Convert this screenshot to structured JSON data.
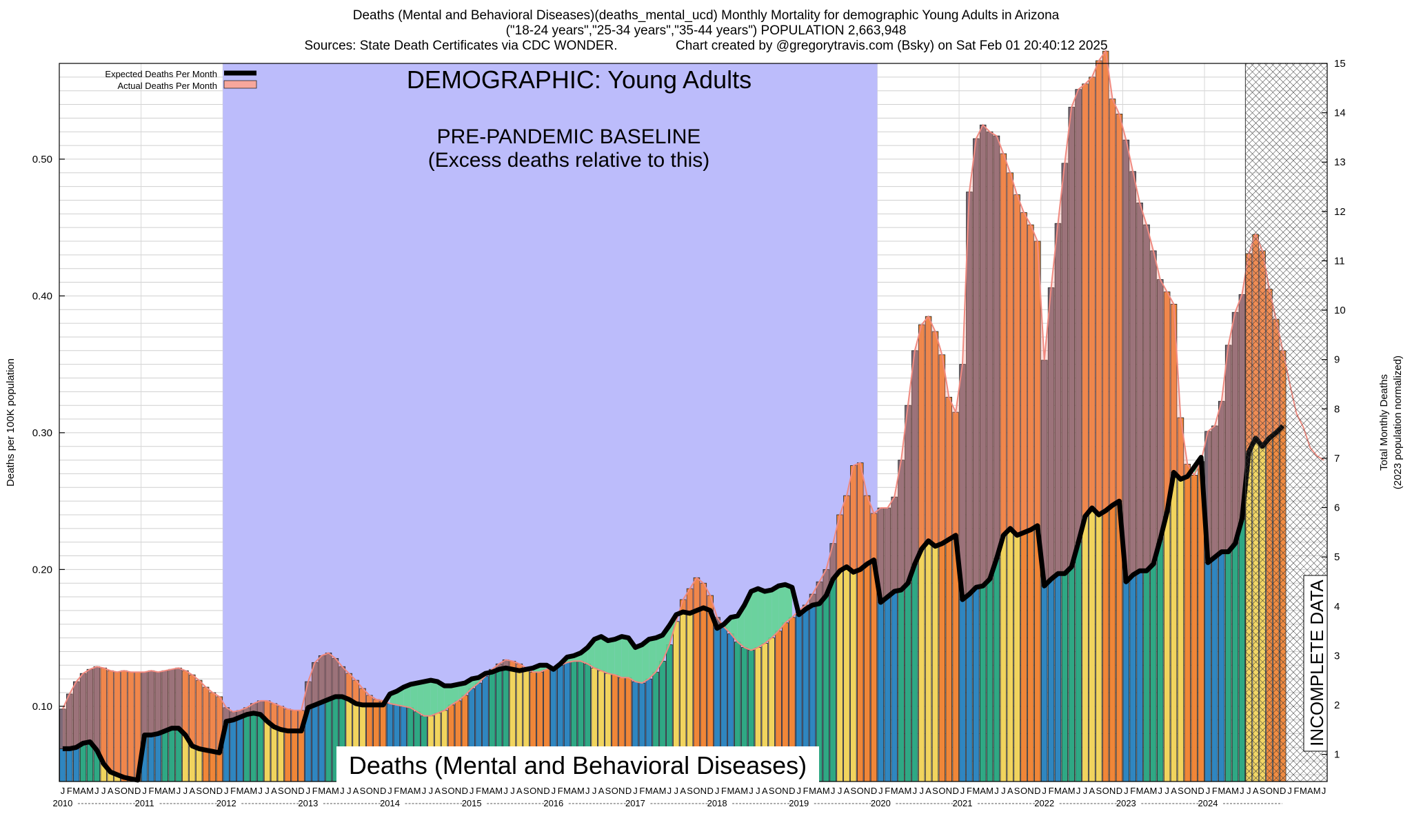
{
  "title_lines": [
    "Deaths (Mental and Behavioral Diseases)(deaths_mental_ucd) Monthly Mortality for demographic Young Adults in Arizona",
    "(\"18-24 years\",\"25-34 years\",\"35-44 years\") POPULATION 2,663,948",
    "Sources: State Death Certificates via CDC WONDER.                Chart created by @gregorytravis.com (Bsky) on Sat Feb 01 20:40:12 2025"
  ],
  "chart_data": {
    "type": "bar",
    "start": "2010-01",
    "month_letters": [
      "J",
      "F",
      "M",
      "A",
      "M",
      "J",
      "J",
      "A",
      "S",
      "O",
      "N",
      "D"
    ],
    "years": [
      "2010",
      "2011",
      "2012",
      "2013",
      "2014",
      "2015",
      "2016",
      "2017",
      "2018",
      "2019",
      "2020",
      "2021",
      "2022",
      "2023",
      "2024"
    ],
    "ylabel": "Deaths per 100K population",
    "y2label_lines": [
      "Total Monthly Deaths",
      "(2023 population normalized)"
    ],
    "ylim": [
      0.045,
      0.57
    ],
    "yticks": [
      "0.10",
      "0.20",
      "0.30",
      "0.40",
      "0.50"
    ],
    "y2lim": [
      0.45,
      15
    ],
    "y2ticks": [
      "1",
      "2",
      "3",
      "4",
      "5",
      "6",
      "7",
      "8",
      "9",
      "10",
      "11",
      "12",
      "13",
      "14",
      "15"
    ],
    "legend": [
      "Expected Deaths Per Month",
      "Actual Deaths Per Month"
    ],
    "annotations": {
      "demographic": "DEMOGRAPHIC: Young Adults",
      "baseline_line1": "PRE-PANDEMIC BASELINE",
      "baseline_line2": "(Excess deaths relative to this)",
      "cause": "Deaths (Mental and Behavioral Diseases)",
      "incomplete": "INCOMPLETE DATA"
    },
    "baseline_period": [
      "2012-01",
      "2019-12"
    ],
    "incomplete_from": "2024-07",
    "series": [
      {
        "name": "Actual Deaths Per Month",
        "values": [
          0.098,
          0.109,
          0.118,
          0.124,
          0.127,
          0.129,
          0.128,
          0.126,
          0.125,
          0.126,
          0.125,
          0.125,
          0.125,
          0.126,
          0.125,
          0.126,
          0.127,
          0.128,
          0.126,
          0.123,
          0.119,
          0.114,
          0.11,
          0.107,
          0.099,
          0.096,
          0.097,
          0.099,
          0.102,
          0.104,
          0.104,
          0.102,
          0.1,
          0.098,
          0.097,
          0.097,
          0.118,
          0.132,
          0.137,
          0.139,
          0.135,
          0.129,
          0.124,
          0.119,
          0.113,
          0.108,
          0.105,
          0.104,
          0.102,
          0.101,
          0.1,
          0.099,
          0.096,
          0.093,
          0.093,
          0.095,
          0.097,
          0.101,
          0.104,
          0.108,
          0.113,
          0.117,
          0.122,
          0.127,
          0.131,
          0.134,
          0.133,
          0.131,
          0.128,
          0.125,
          0.125,
          0.127,
          0.128,
          0.13,
          0.132,
          0.133,
          0.133,
          0.131,
          0.128,
          0.126,
          0.124,
          0.123,
          0.121,
          0.121,
          0.118,
          0.117,
          0.12,
          0.125,
          0.133,
          0.145,
          0.162,
          0.178,
          0.186,
          0.194,
          0.19,
          0.181,
          0.165,
          0.158,
          0.153,
          0.147,
          0.143,
          0.141,
          0.143,
          0.146,
          0.15,
          0.155,
          0.161,
          0.165,
          0.17,
          0.174,
          0.182,
          0.191,
          0.2,
          0.219,
          0.24,
          0.254,
          0.276,
          0.278,
          0.254,
          0.241,
          0.245,
          0.245,
          0.253,
          0.28,
          0.32,
          0.36,
          0.379,
          0.385,
          0.374,
          0.357,
          0.326,
          0.315,
          0.35,
          0.476,
          0.515,
          0.525,
          0.52,
          0.517,
          0.504,
          0.49,
          0.474,
          0.461,
          0.452,
          0.44,
          0.353,
          0.406,
          0.453,
          0.497,
          0.538,
          0.551,
          0.555,
          0.56,
          0.572,
          0.579,
          0.544,
          0.533,
          0.514,
          0.491,
          0.468,
          0.452,
          0.433,
          0.412,
          0.403,
          0.394,
          0.311,
          0.277,
          0.269,
          0.279,
          0.301,
          0.305,
          0.323,
          0.364,
          0.388,
          0.401,
          0.431,
          0.445,
          0.433,
          0.405,
          0.383,
          0.36,
          0.336,
          0.314,
          0.304,
          0.289,
          0.283,
          0.28
        ]
      },
      {
        "name": "Expected Deaths Per Month",
        "values": [
          0.069,
          0.069,
          0.07,
          0.073,
          0.074,
          0.068,
          0.058,
          0.052,
          0.05,
          0.048,
          0.047,
          0.046,
          0.079,
          0.079,
          0.08,
          0.082,
          0.084,
          0.084,
          0.079,
          0.071,
          0.069,
          0.068,
          0.067,
          0.066,
          0.089,
          0.09,
          0.092,
          0.094,
          0.095,
          0.094,
          0.089,
          0.085,
          0.083,
          0.082,
          0.082,
          0.082,
          0.099,
          0.101,
          0.103,
          0.105,
          0.107,
          0.107,
          0.105,
          0.102,
          0.101,
          0.101,
          0.101,
          0.101,
          0.109,
          0.111,
          0.114,
          0.116,
          0.117,
          0.118,
          0.119,
          0.118,
          0.115,
          0.115,
          0.116,
          0.117,
          0.12,
          0.121,
          0.124,
          0.125,
          0.127,
          0.128,
          0.127,
          0.126,
          0.127,
          0.128,
          0.13,
          0.13,
          0.127,
          0.131,
          0.136,
          0.137,
          0.139,
          0.143,
          0.149,
          0.151,
          0.148,
          0.149,
          0.151,
          0.15,
          0.143,
          0.145,
          0.149,
          0.15,
          0.152,
          0.159,
          0.167,
          0.169,
          0.168,
          0.17,
          0.172,
          0.17,
          0.157,
          0.16,
          0.165,
          0.166,
          0.174,
          0.184,
          0.186,
          0.184,
          0.185,
          0.188,
          0.189,
          0.187,
          0.167,
          0.171,
          0.174,
          0.175,
          0.181,
          0.193,
          0.199,
          0.202,
          0.198,
          0.2,
          0.204,
          0.207,
          0.176,
          0.18,
          0.184,
          0.185,
          0.19,
          0.204,
          0.215,
          0.221,
          0.217,
          0.219,
          0.222,
          0.225,
          0.178,
          0.182,
          0.187,
          0.188,
          0.193,
          0.208,
          0.225,
          0.23,
          0.225,
          0.227,
          0.229,
          0.232,
          0.188,
          0.193,
          0.197,
          0.197,
          0.202,
          0.22,
          0.239,
          0.245,
          0.24,
          0.243,
          0.247,
          0.25,
          0.191,
          0.196,
          0.199,
          0.199,
          0.204,
          0.222,
          0.242,
          0.271,
          0.266,
          0.268,
          0.275,
          0.282,
          0.205,
          0.209,
          0.213,
          0.213,
          0.219,
          0.237,
          0.286,
          0.296,
          0.29,
          0.296,
          0.3,
          0.305
        ]
      }
    ]
  }
}
